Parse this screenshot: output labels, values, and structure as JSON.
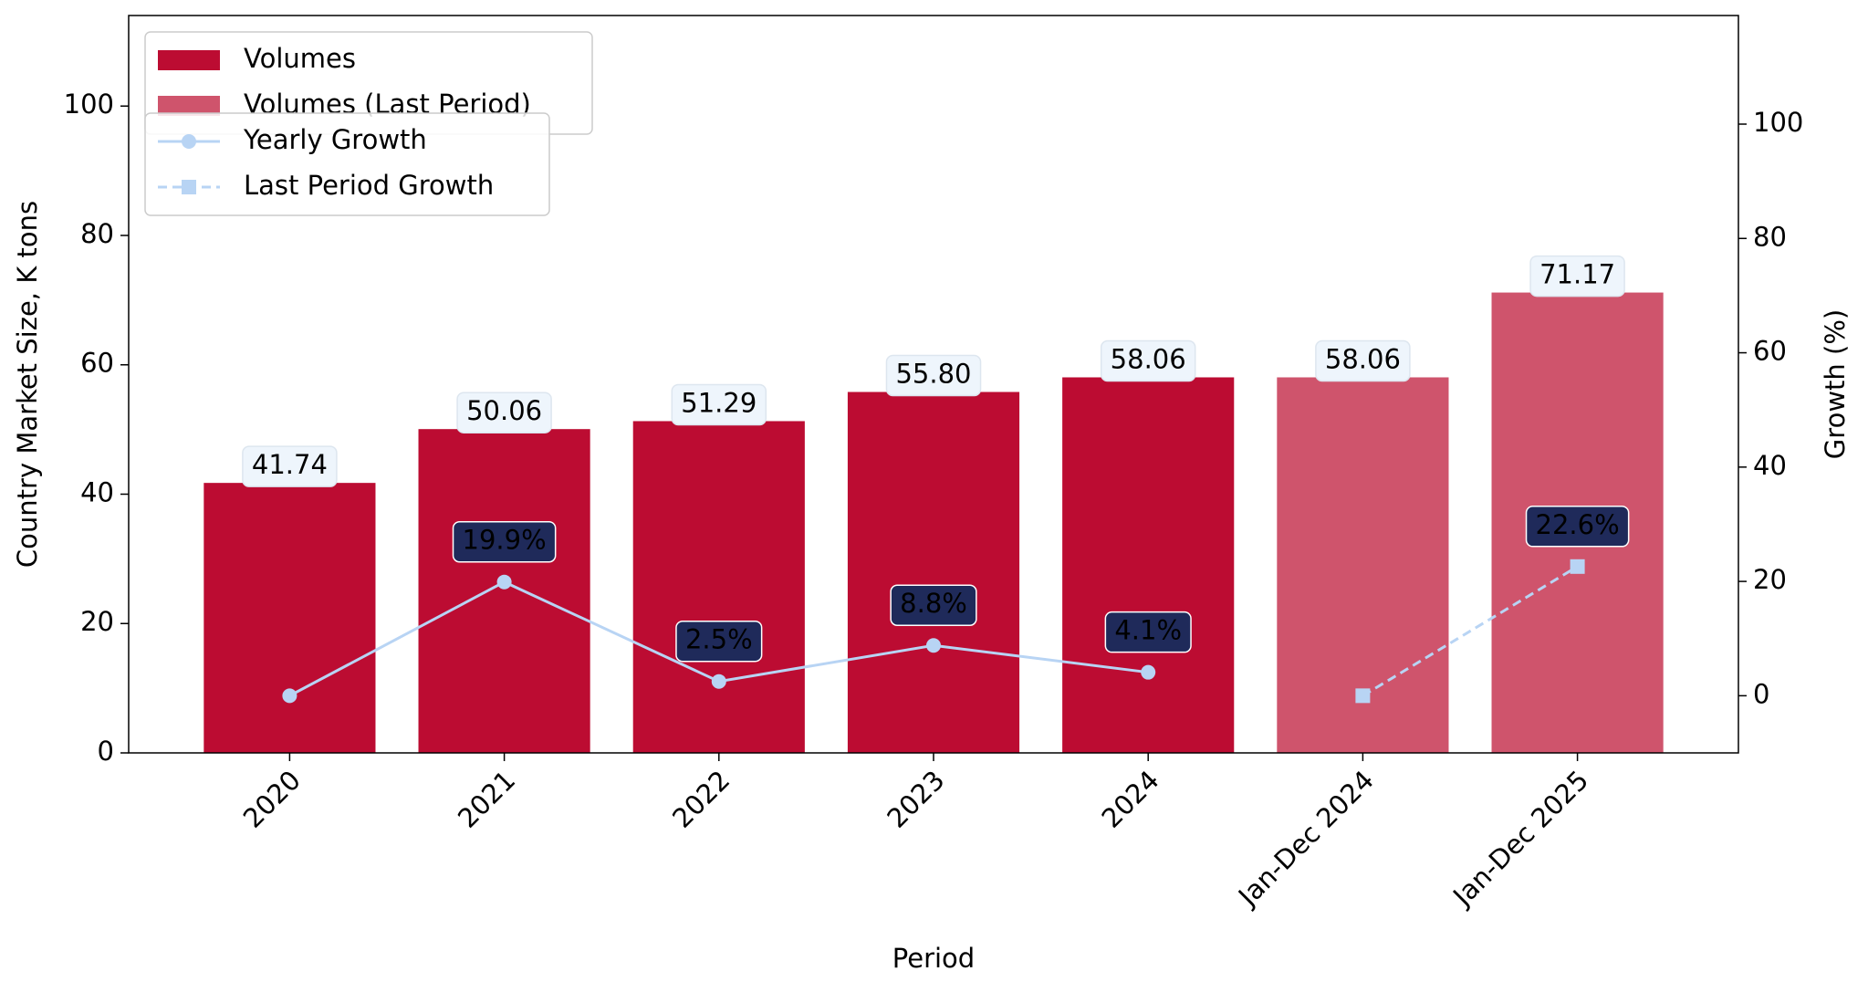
{
  "chart_data": {
    "type": "bar_line",
    "x_label": "Period",
    "y_label": "Country Market Size, K tons",
    "y2_label": "Growth (%)",
    "categories": [
      "2020",
      "2021",
      "2022",
      "2023",
      "2024",
      "Jan-Dec 2024",
      "Jan-Dec 2025"
    ],
    "series": [
      {
        "name": "Volumes",
        "type": "bar",
        "color": "#bc0c32",
        "values": [
          41.74,
          50.06,
          51.29,
          55.8,
          58.06,
          null,
          null
        ],
        "value_labels": [
          "41.74",
          "50.06",
          "51.29",
          "55.80",
          "58.06",
          null,
          null
        ]
      },
      {
        "name": "Volumes (Last Period)",
        "type": "bar",
        "color": "#cf546c",
        "values": [
          null,
          null,
          null,
          null,
          null,
          58.06,
          71.17
        ],
        "value_labels": [
          null,
          null,
          null,
          null,
          null,
          "58.06",
          "71.17"
        ]
      },
      {
        "name": "Yearly Growth",
        "type": "line",
        "axis": "y2",
        "color": "#b8d4f4",
        "marker": "circle",
        "dash": false,
        "values": [
          0,
          19.9,
          2.5,
          8.8,
          4.1,
          null,
          null
        ],
        "value_labels": [
          null,
          "19.9%",
          "2.5%",
          "8.8%",
          "4.1%",
          null,
          null
        ]
      },
      {
        "name": "Last Period Growth",
        "type": "line",
        "axis": "y2",
        "color": "#b8d4f4",
        "marker": "square",
        "dash": true,
        "values": [
          null,
          null,
          null,
          null,
          null,
          0,
          22.6
        ],
        "value_labels": [
          null,
          null,
          null,
          null,
          null,
          null,
          "22.6%"
        ]
      }
    ],
    "ylim": [
      0,
      114
    ],
    "yticks": [
      0,
      20,
      40,
      60,
      80,
      100
    ],
    "y_color": "#0000cc",
    "y2lim": [
      -10,
      119
    ],
    "y2ticks": [
      0,
      20,
      40,
      60,
      80,
      100
    ],
    "y2_color": "#dd0000"
  }
}
